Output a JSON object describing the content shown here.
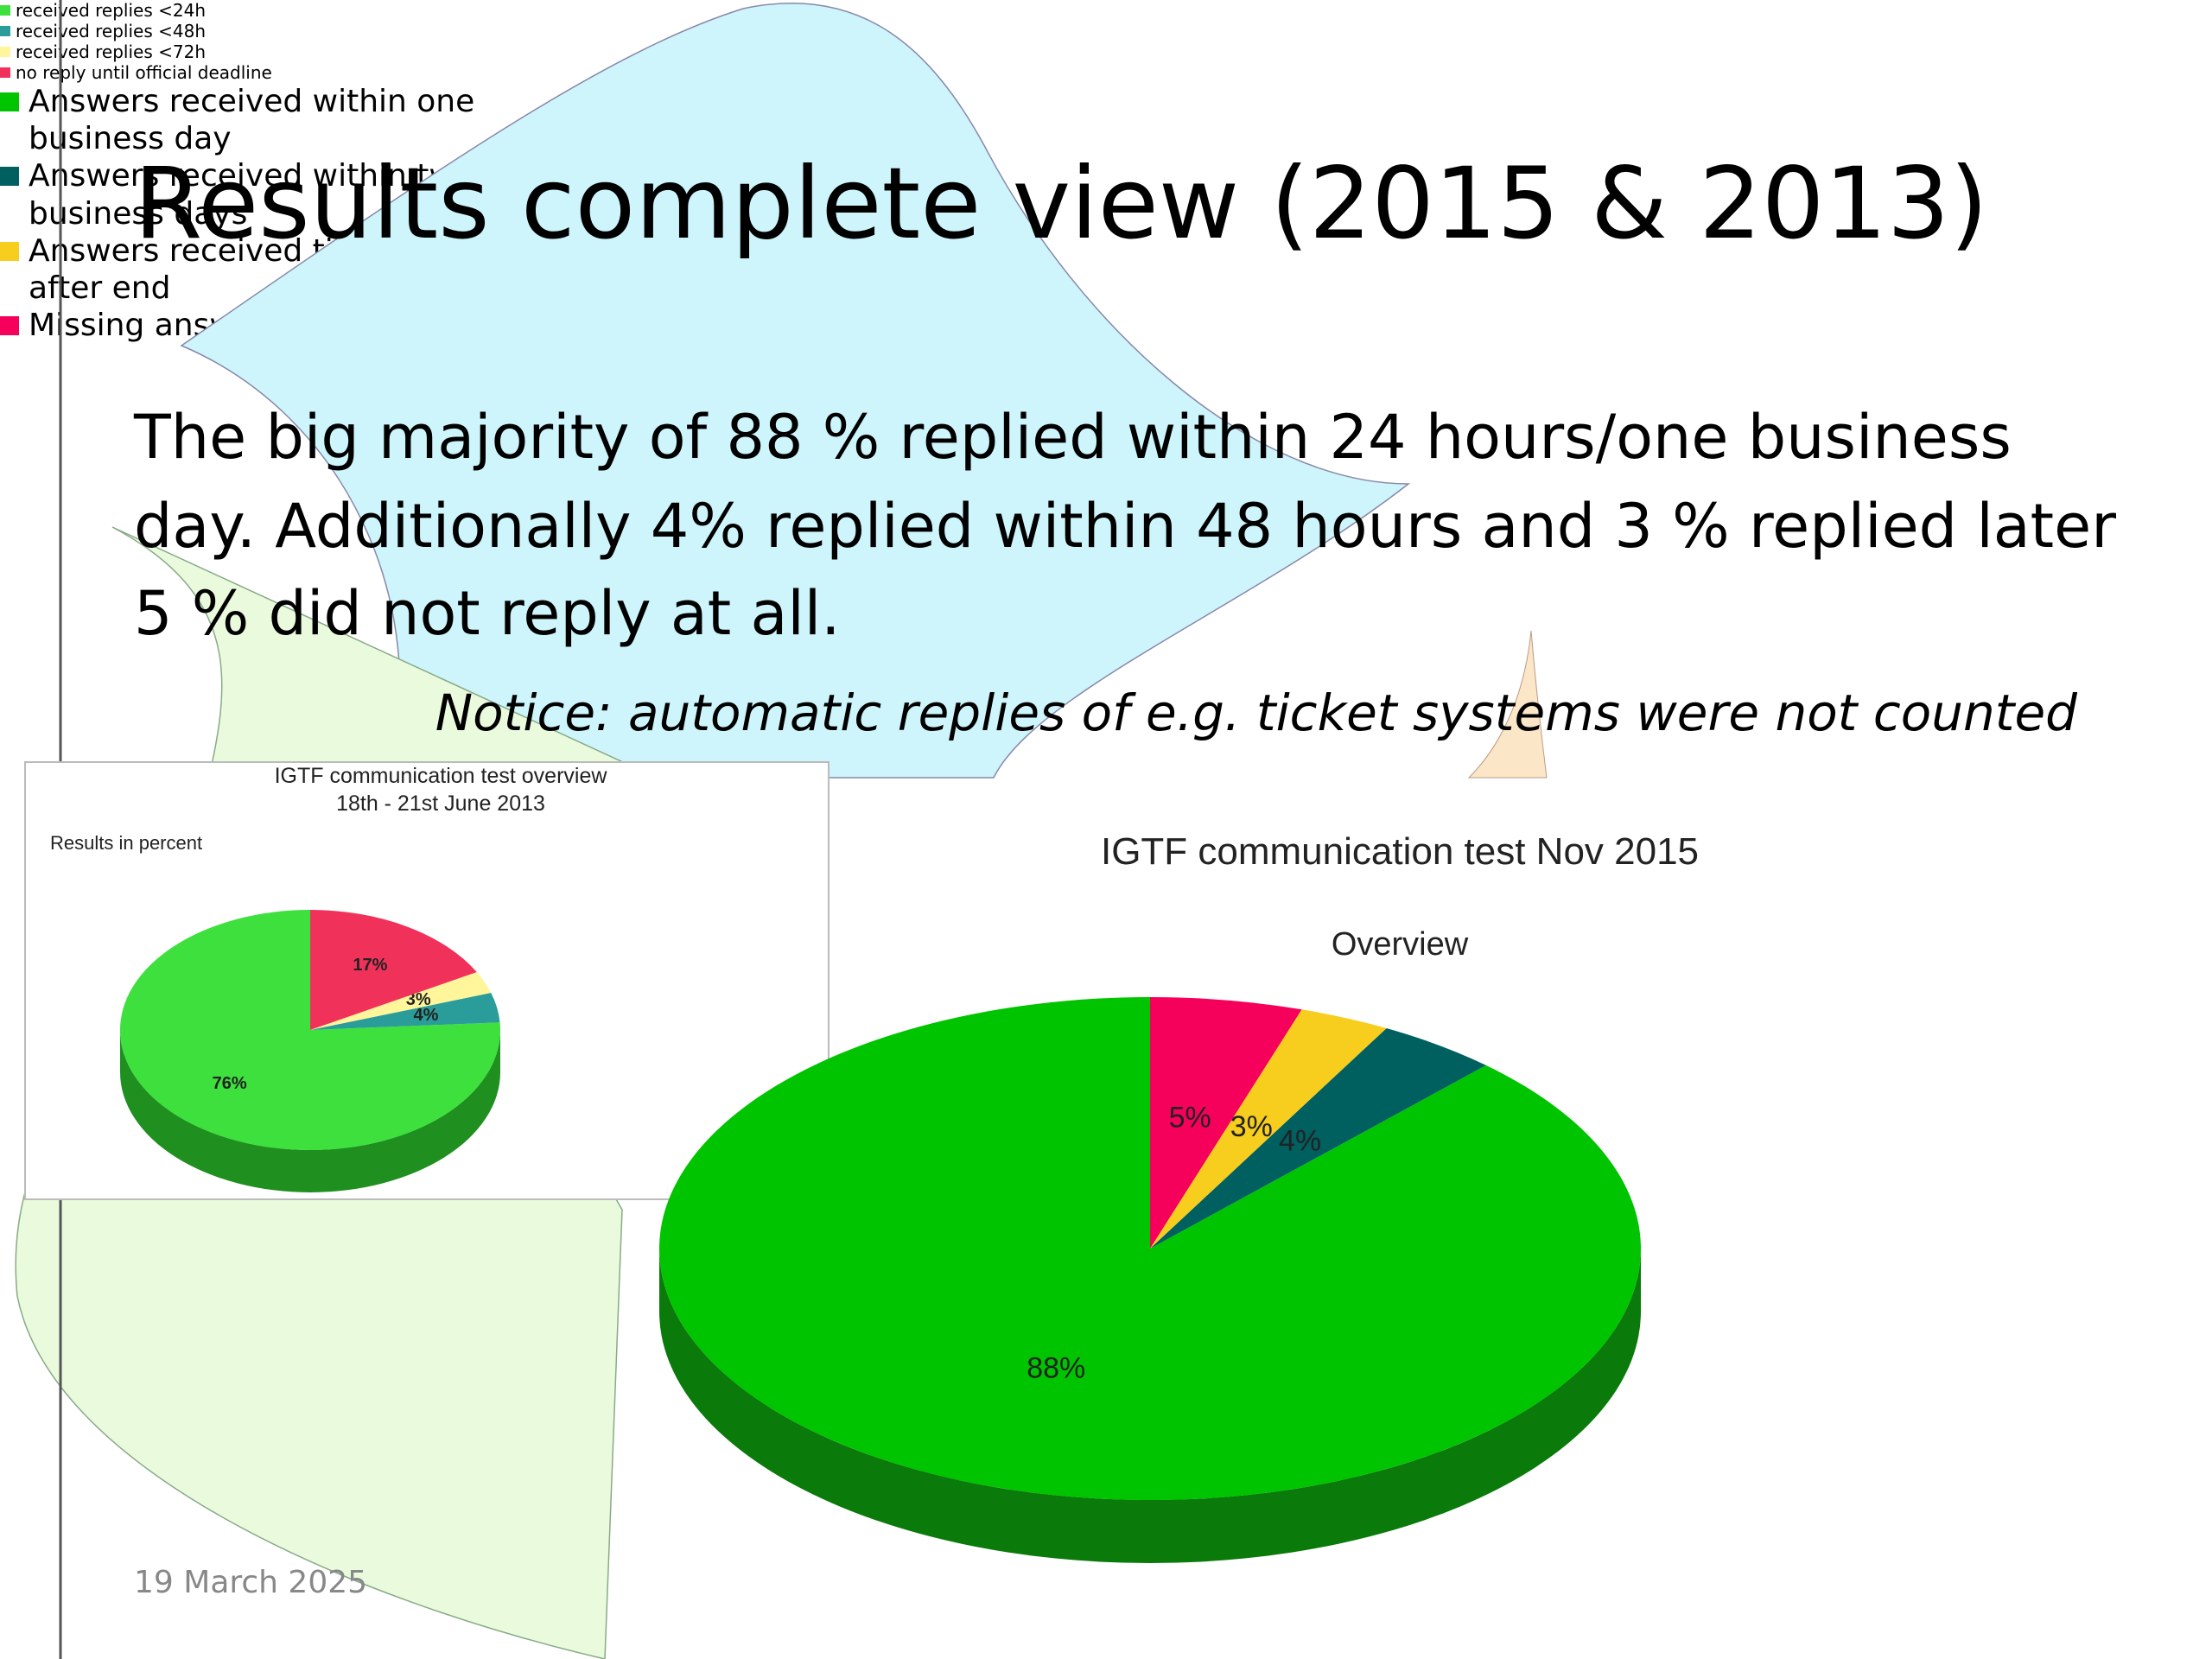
{
  "slide": {
    "title": "Results complete view (2015 & 2013)",
    "body": [
      "The big majority of 88 % replied within 24 hours/one business",
      "day. Additionally 4% replied within 48 hours and 3 % replied later",
      "5 % did not reply at all."
    ],
    "notice": "Notice: automatic replies of e.g. ticket systems were not counted",
    "date": "19 March 2025"
  },
  "chart_data": [
    {
      "type": "pie",
      "title": "IGTF communication test overview",
      "subtitle": "18th - 21st June 2013",
      "annotation": "Results in percent",
      "categories": [
        "received replies <24h",
        "received replies <48h",
        "received replies <72h",
        "no reply until official deadline"
      ],
      "values": [
        76,
        4,
        3,
        17
      ],
      "value_labels": [
        "76%",
        "4%",
        "3%",
        "17%"
      ],
      "colors": [
        "#3de03d",
        "#2a9d9a",
        "#fff59a",
        "#f0325a"
      ]
    },
    {
      "type": "pie",
      "title": "IGTF communication test Nov 2015",
      "subtitle": "Overview",
      "categories": [
        "Answers received within one business day",
        "Answers received within two business days",
        "Answers received til and after end",
        "Missing answers in the end"
      ],
      "values": [
        88,
        4,
        3,
        5
      ],
      "value_labels": [
        "88%",
        "4%",
        "3%",
        "5%"
      ],
      "colors": [
        "#00c400",
        "#005f5f",
        "#f7cd1e",
        "#f5005a"
      ]
    }
  ]
}
